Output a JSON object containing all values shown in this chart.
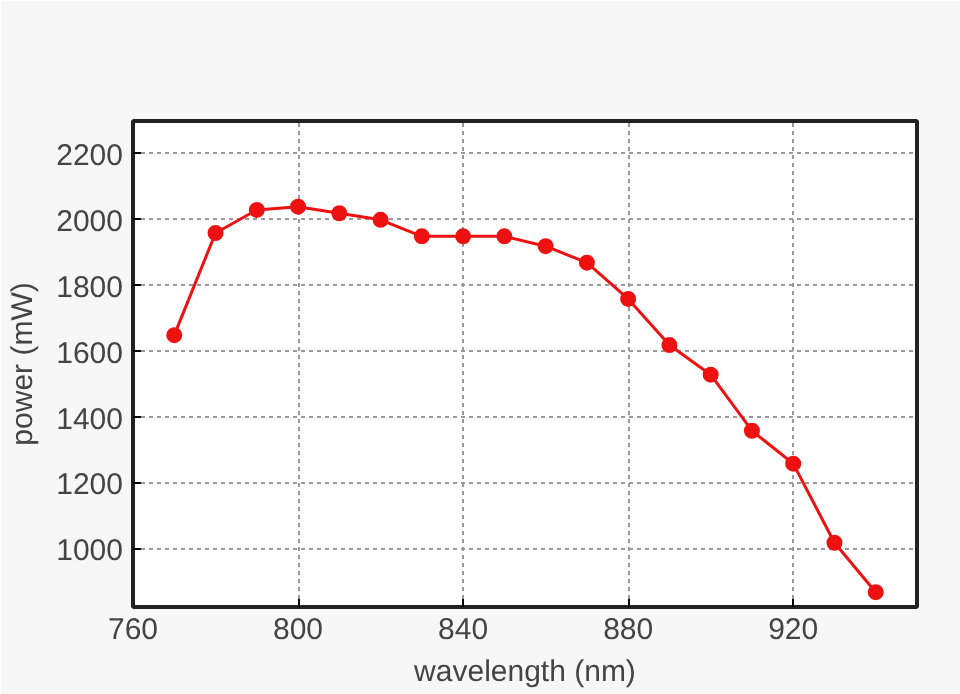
{
  "chart_data": {
    "type": "line",
    "xlabel": "wavelength (nm)",
    "ylabel": "power (mW)",
    "x": [
      770,
      780,
      790,
      800,
      810,
      820,
      830,
      840,
      850,
      860,
      870,
      880,
      890,
      900,
      910,
      920,
      930,
      940
    ],
    "series": [
      {
        "color": "#ee1111",
        "values": [
          1650,
          1960,
          2030,
          2040,
          2020,
          2000,
          1950,
          1950,
          1950,
          1920,
          1870,
          1760,
          1620,
          1530,
          1360,
          1260,
          1020,
          870
        ]
      }
    ],
    "xlim": [
      760,
      950
    ],
    "ylim": [
      825,
      2300
    ],
    "xticks": [
      760,
      800,
      840,
      880,
      920
    ],
    "yticks": [
      1000,
      1200,
      1400,
      1600,
      1800,
      2000,
      2200
    ],
    "grid": true,
    "marker": "circle",
    "line_style": "solid"
  }
}
